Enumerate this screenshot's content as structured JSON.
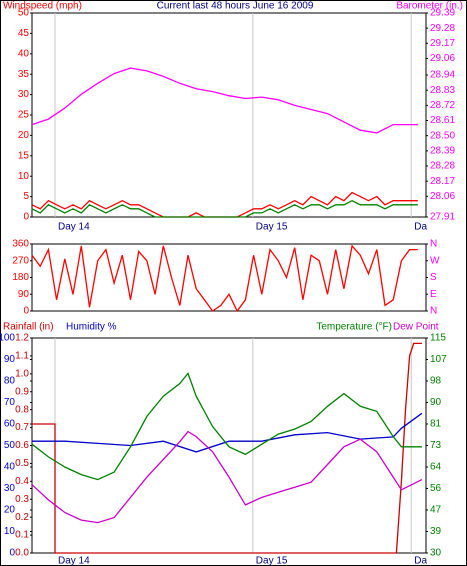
{
  "chart_data": [
    {
      "type": "line",
      "title": "Current last 48 hours June 16 2009",
      "ylabel": "Windspeed (mph)",
      "ylabel_color": "#ff0000",
      "y2label": "Barometer (in.)",
      "y2label_color": "#ff00ff",
      "xlim": [
        0,
        48
      ],
      "xticks": [
        {
          "value": 2.8,
          "label": "Day 14"
        },
        {
          "value": 26.9,
          "label": "Day 15"
        },
        {
          "value": 46.2,
          "label": "Da"
        }
      ],
      "grid": true,
      "ylim": [
        0,
        50
      ],
      "yticks": [
        0,
        5,
        10,
        15,
        20,
        25,
        30,
        35,
        40,
        45,
        50
      ],
      "y2lim": [
        27.91,
        29.39
      ],
      "y2ticks": [
        29.39,
        29.28,
        29.17,
        29.06,
        28.94,
        28.83,
        28.72,
        28.61,
        {
          "value": 28.5,
          "label": "28.50"
        },
        28.39,
        28.28,
        28.17,
        28.06,
        27.91
      ],
      "series": [
        {
          "color": "#ff00ff",
          "axis": "y2",
          "x": [
            0,
            2,
            4,
            6,
            8,
            10,
            12,
            14,
            16,
            18,
            20,
            22,
            24,
            26,
            28,
            30,
            32,
            34,
            36,
            38,
            40,
            42,
            44,
            46,
            47
          ],
          "values": [
            28.58,
            28.62,
            28.7,
            28.8,
            28.88,
            28.95,
            28.99,
            28.97,
            28.93,
            28.88,
            28.84,
            28.82,
            28.79,
            28.77,
            28.78,
            28.76,
            28.72,
            28.69,
            28.66,
            28.6,
            28.54,
            28.52,
            28.58,
            28.58,
            28.58
          ]
        },
        {
          "color": "#ff0000",
          "x": [
            0,
            1,
            2,
            3,
            4,
            5,
            6,
            7,
            8,
            9,
            10,
            11,
            12,
            13,
            14,
            15,
            16,
            17,
            18,
            19,
            20,
            21,
            22,
            23,
            24,
            25,
            26,
            27,
            28,
            29,
            30,
            31,
            32,
            33,
            34,
            35,
            36,
            37,
            38,
            39,
            40,
            41,
            42,
            43,
            44,
            45,
            46,
            47
          ],
          "values": [
            3,
            2,
            4,
            3,
            2,
            3,
            2,
            4,
            3,
            2,
            3,
            4,
            3,
            3,
            2,
            1,
            0,
            0,
            0,
            0,
            1,
            0,
            0,
            0,
            0,
            0,
            1,
            2,
            2,
            3,
            2,
            3,
            4,
            3,
            5,
            4,
            3,
            5,
            4,
            6,
            5,
            4,
            5,
            3,
            4,
            4,
            4,
            4
          ]
        },
        {
          "color": "#008000",
          "x": [
            0,
            1,
            2,
            3,
            4,
            5,
            6,
            7,
            8,
            9,
            10,
            11,
            12,
            13,
            14,
            15,
            16,
            17,
            18,
            19,
            20,
            21,
            22,
            23,
            24,
            25,
            26,
            27,
            28,
            29,
            30,
            31,
            32,
            33,
            34,
            35,
            36,
            37,
            38,
            39,
            40,
            41,
            42,
            43,
            44,
            45,
            46,
            47
          ],
          "values": [
            2,
            1,
            3,
            2,
            1,
            2,
            1,
            3,
            2,
            1,
            2,
            3,
            2,
            2,
            1,
            0,
            0,
            0,
            0,
            0,
            0,
            0,
            0,
            0,
            0,
            0,
            0,
            1,
            1,
            2,
            1,
            2,
            3,
            2,
            3,
            3,
            2,
            3,
            3,
            4,
            3,
            3,
            3,
            2,
            3,
            3,
            3,
            3
          ]
        }
      ]
    },
    {
      "type": "line",
      "xlim": [
        0,
        48
      ],
      "ylim": [
        0,
        360
      ],
      "yticks": [
        0,
        90,
        180,
        270,
        360
      ],
      "y2lim": [
        0,
        360
      ],
      "y2ticks": [
        {
          "value": 0,
          "label": "N"
        },
        {
          "value": 90,
          "label": "E"
        },
        {
          "value": 180,
          "label": "S"
        },
        {
          "value": 270,
          "label": "W"
        },
        {
          "value": 360,
          "label": "N"
        }
      ],
      "series": [
        {
          "color": "#ff0000",
          "x": [
            0,
            1,
            2,
            3,
            4,
            5,
            6,
            7,
            8,
            9,
            10,
            11,
            12,
            13,
            14,
            15,
            16,
            17,
            18,
            19,
            20,
            21,
            22,
            23,
            24,
            25,
            26,
            27,
            28,
            29,
            30,
            31,
            32,
            33,
            34,
            35,
            36,
            37,
            38,
            39,
            40,
            41,
            42,
            43,
            44,
            45,
            46,
            47
          ],
          "values": [
            300,
            240,
            330,
            60,
            280,
            90,
            350,
            20,
            270,
            330,
            150,
            300,
            60,
            320,
            270,
            90,
            350,
            180,
            30,
            300,
            120,
            60,
            0,
            30,
            90,
            0,
            60,
            300,
            90,
            330,
            270,
            180,
            340,
            60,
            300,
            270,
            90,
            330,
            120,
            350,
            300,
            200,
            330,
            30,
            60,
            270,
            330,
            330
          ]
        }
      ]
    },
    {
      "type": "line",
      "xlim": [
        0,
        48
      ],
      "xticks": [
        {
          "value": 2.8,
          "label": "Day 14"
        },
        {
          "value": 26.9,
          "label": "Day 15"
        },
        {
          "value": 46.2,
          "label": "Da"
        }
      ],
      "grid": true,
      "ylim": [
        0,
        1.2
      ],
      "yticks": [
        {
          "value": 0,
          "label": "0.0"
        },
        0.1,
        0.2,
        0.3,
        0.4,
        0.5,
        0.6,
        0.7,
        0.8,
        0.9,
        {
          "value": 1,
          "label": "1.0"
        },
        1.1,
        1.2
      ],
      "y3lim": [
        0,
        100
      ],
      "y3ticks": [
        0,
        10,
        20,
        30,
        40,
        50,
        60,
        70,
        80,
        90,
        100
      ],
      "y2lim": [
        30,
        115
      ],
      "y2ticks": [
        30,
        {
          "value": 38.5,
          "label": "39"
        },
        47,
        {
          "value": 55.5,
          "label": "56"
        },
        64,
        {
          "value": 72.5,
          "label": "73"
        },
        81,
        {
          "value": 89.5,
          "label": "90"
        },
        98,
        {
          "value": 106.5,
          "label": "107"
        },
        115
      ],
      "series": [
        {
          "name": "Rainfall (in)",
          "color": "#cc0000",
          "x": [
            0,
            2.8,
            2.8,
            44.4,
            45,
            45.5,
            46,
            46.5,
            47.5
          ],
          "values": [
            0.72,
            0.72,
            0,
            0,
            0.4,
            0.8,
            1.1,
            1.17,
            1.17
          ]
        },
        {
          "name": "Humidity %",
          "color": "#0000cc",
          "axis": "y3",
          "x": [
            0,
            4,
            8,
            12,
            16,
            20,
            24,
            28,
            32,
            36,
            40,
            44,
            45,
            47.5
          ],
          "values": [
            52,
            52,
            51,
            50,
            52,
            47,
            52,
            52,
            55,
            56,
            53,
            54,
            58,
            65
          ]
        },
        {
          "name": "Temperature (°F)",
          "color": "#008000",
          "axis": "y2",
          "x": [
            0,
            2,
            4,
            6,
            8,
            10,
            12,
            14,
            16,
            18,
            19,
            20,
            22,
            24,
            26,
            28,
            30,
            32,
            34,
            36,
            38,
            40,
            42,
            44,
            45,
            47.5
          ],
          "values": [
            73,
            68,
            64,
            61,
            59,
            62,
            72,
            84,
            92,
            97,
            101,
            92,
            80,
            72,
            69,
            73,
            77,
            79,
            82,
            88,
            93,
            88,
            86,
            76,
            72,
            72
          ]
        },
        {
          "name": "Dew Point",
          "color": "#cc00cc",
          "axis": "y2",
          "x": [
            0,
            2,
            4,
            6,
            8,
            10,
            12,
            14,
            16,
            18,
            19,
            20,
            22,
            24,
            26,
            28,
            30,
            32,
            34,
            36,
            38,
            40,
            42,
            44,
            45,
            47.5
          ],
          "values": [
            57,
            51,
            46,
            43,
            42,
            44,
            52,
            60,
            67,
            74,
            78,
            76,
            70,
            60,
            49,
            52,
            54,
            56,
            58,
            65,
            72,
            75,
            70,
            60,
            55,
            59
          ]
        }
      ]
    }
  ]
}
